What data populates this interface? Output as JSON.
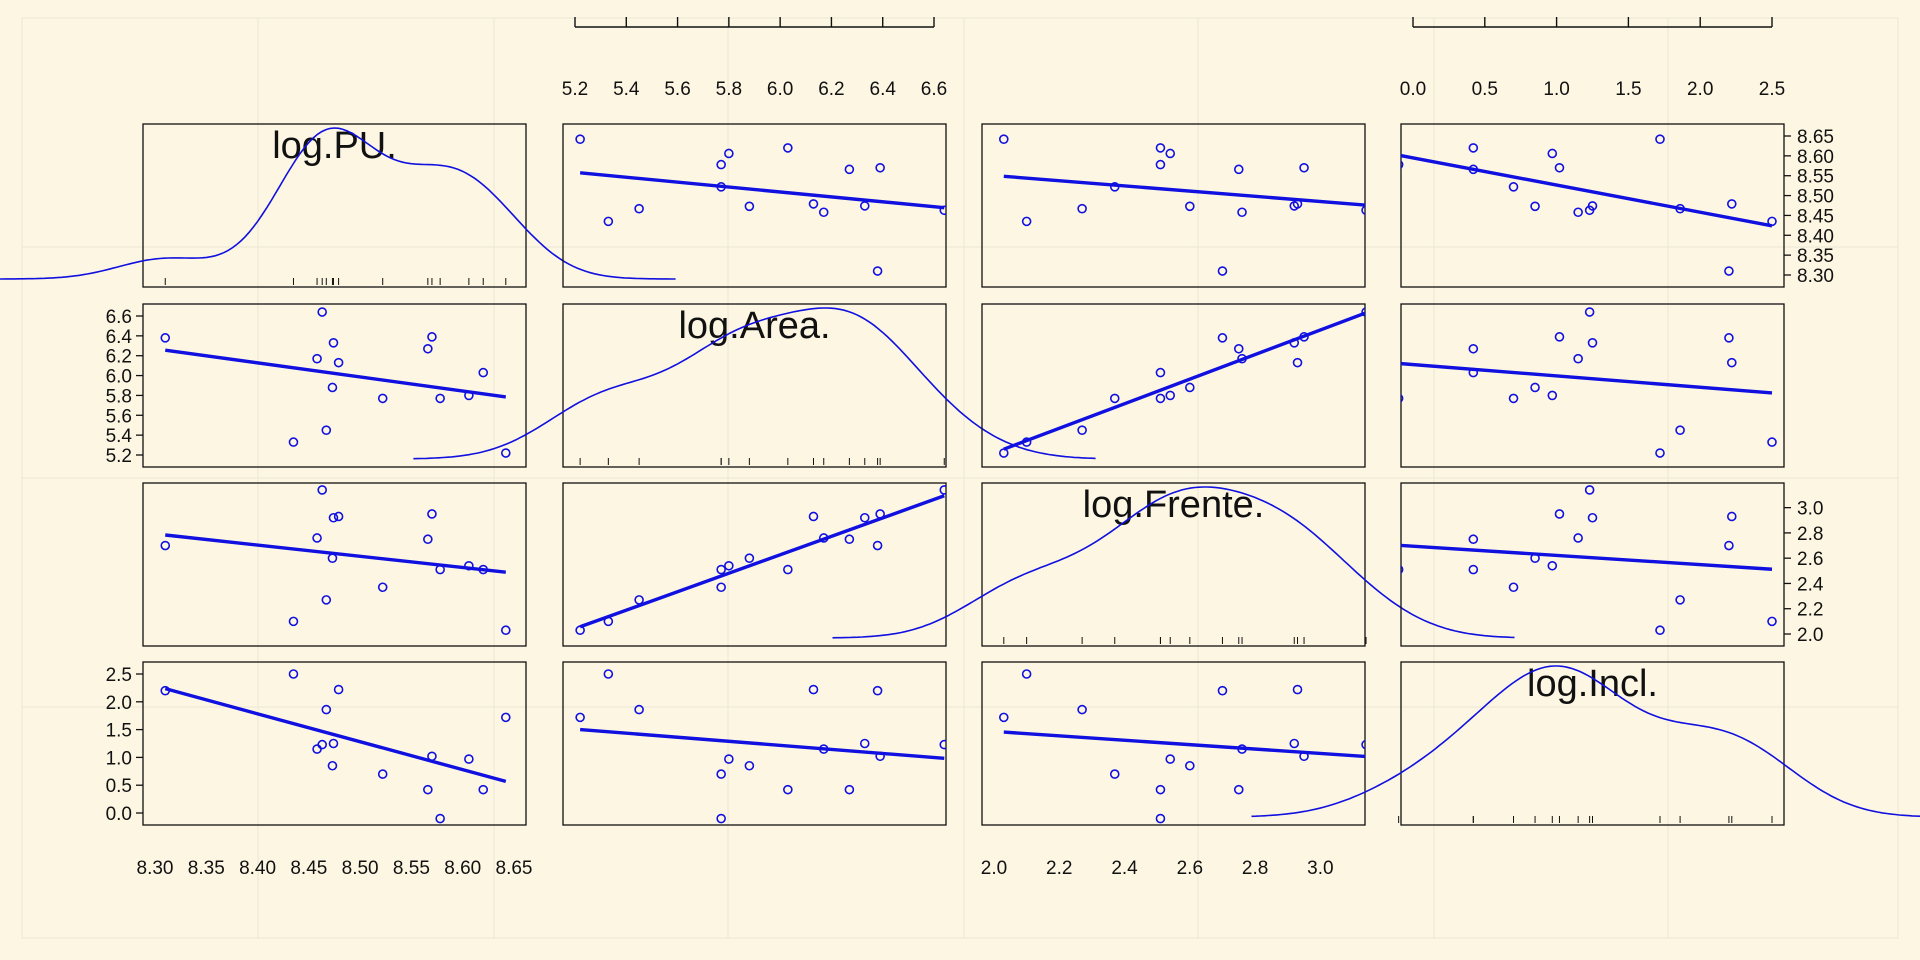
{
  "chart_data": {
    "type": "scatter",
    "subtype": "scatterplot-matrix",
    "colors": {
      "background": "#fdf6e3",
      "grid": "#ece7d6",
      "points": "#1010e0",
      "axes": "#111111"
    },
    "variables": [
      {
        "name": "log.PU.",
        "range": [
          8.3,
          8.65
        ],
        "ticks": [
          "8.30",
          "8.35",
          "8.40",
          "8.45",
          "8.50",
          "8.55",
          "8.60",
          "8.65"
        ]
      },
      {
        "name": "log.Area.",
        "range": [
          5.2,
          6.6
        ],
        "ticks": [
          "5.2",
          "5.4",
          "5.6",
          "5.8",
          "6.0",
          "6.2",
          "6.4",
          "6.6"
        ]
      },
      {
        "name": "log.Frente.",
        "range": [
          2.0,
          3.1
        ],
        "ticks": [
          "2.0",
          "2.2",
          "2.4",
          "2.6",
          "2.8",
          "3.0"
        ]
      },
      {
        "name": "log.Incl.",
        "range": [
          0.0,
          2.5
        ],
        "ticks": [
          "0.0",
          "0.5",
          "1.0",
          "1.5",
          "2.0",
          "2.5"
        ]
      }
    ],
    "tick_axes": {
      "top": [
        "log.Area.",
        "log.Incl."
      ],
      "bottom": [
        "log.PU.",
        "log.Frente."
      ],
      "left": [
        "log.Area.",
        "log.Incl."
      ],
      "right": [
        "log.PU.",
        "log.Frente."
      ]
    },
    "observations": [
      {
        "PU": 8.31,
        "Area": 6.38,
        "Frente": 2.7,
        "Incl": 2.2
      },
      {
        "PU": 8.435,
        "Area": 5.33,
        "Frente": 2.1,
        "Incl": 2.5
      },
      {
        "PU": 8.458,
        "Area": 6.17,
        "Frente": 2.76,
        "Incl": 1.15
      },
      {
        "PU": 8.463,
        "Area": 6.64,
        "Frente": 3.14,
        "Incl": 1.23
      },
      {
        "PU": 8.467,
        "Area": 5.45,
        "Frente": 2.27,
        "Incl": 1.86
      },
      {
        "PU": 8.473,
        "Area": 5.88,
        "Frente": 2.6,
        "Incl": 0.85
      },
      {
        "PU": 8.474,
        "Area": 6.33,
        "Frente": 2.92,
        "Incl": 1.25
      },
      {
        "PU": 8.479,
        "Area": 6.13,
        "Frente": 2.93,
        "Incl": 2.22
      },
      {
        "PU": 8.522,
        "Area": 5.77,
        "Frente": 2.37,
        "Incl": 0.7
      },
      {
        "PU": 8.566,
        "Area": 6.27,
        "Frente": 2.75,
        "Incl": 0.42
      },
      {
        "PU": 8.57,
        "Area": 6.39,
        "Frente": 2.95,
        "Incl": 1.02
      },
      {
        "PU": 8.578,
        "Area": 5.77,
        "Frente": 2.51,
        "Incl": -0.1
      },
      {
        "PU": 8.606,
        "Area": 5.8,
        "Frente": 2.54,
        "Incl": 0.97
      },
      {
        "PU": 8.62,
        "Area": 6.03,
        "Frente": 2.51,
        "Incl": 0.42
      },
      {
        "PU": 8.642,
        "Area": 5.22,
        "Frente": 2.03,
        "Incl": 1.72
      }
    ]
  }
}
